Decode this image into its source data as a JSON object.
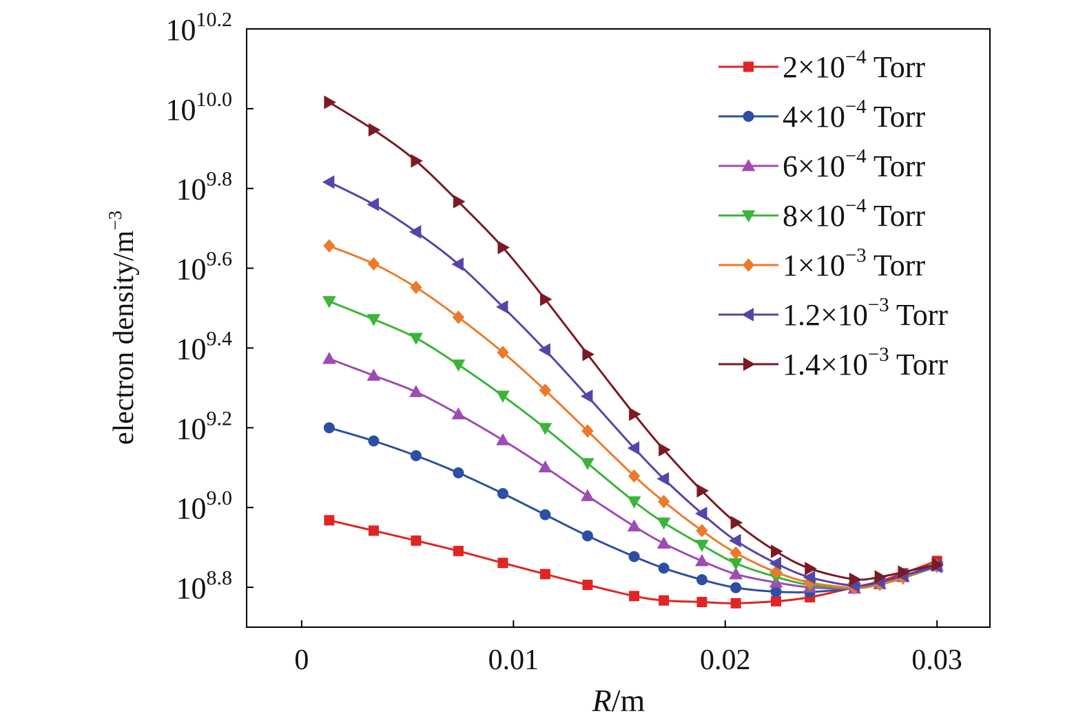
{
  "chart_data": {
    "type": "line",
    "xlabel": {
      "italic": "R",
      "rest": "/m"
    },
    "ylabel": {
      "base": "electron density/m",
      "sup": "−3"
    },
    "xlim": [
      -0.0026,
      0.0325
    ],
    "ylim": [
      8.7,
      10.2
    ],
    "y_scale": "log10",
    "grid": false,
    "legend_position": "top-right",
    "x_ticks": [
      {
        "value": 0,
        "label": "0"
      },
      {
        "value": 0.01,
        "label": "0.01"
      },
      {
        "value": 0.02,
        "label": "0.02"
      },
      {
        "value": 0.03,
        "label": "0.03"
      }
    ],
    "y_ticks": [
      {
        "exp": 8.8,
        "base": "10",
        "sup": "8.8"
      },
      {
        "exp": 9.0,
        "base": "10",
        "sup": "9.0"
      },
      {
        "exp": 9.2,
        "base": "10",
        "sup": "9.2"
      },
      {
        "exp": 9.4,
        "base": "10",
        "sup": "9.4"
      },
      {
        "exp": 9.6,
        "base": "10",
        "sup": "9.6"
      },
      {
        "exp": 9.8,
        "base": "10",
        "sup": "9.8"
      },
      {
        "exp": 10.0,
        "base": "10",
        "sup": "10.0"
      },
      {
        "exp": 10.2,
        "base": "10",
        "sup": "10.2"
      }
    ],
    "x": [
      0.0013,
      0.0034,
      0.0054,
      0.0074,
      0.0095,
      0.0115,
      0.0135,
      0.0157,
      0.0171,
      0.0189,
      0.0205,
      0.0224,
      0.024,
      0.0261,
      0.0273,
      0.0284,
      0.03
    ],
    "series": [
      {
        "name": "2×10⁻⁴ Torr",
        "base": "2×10",
        "sup": "−4",
        "tail": " Torr",
        "color": "#e02424",
        "marker": "square",
        "values": [
          8.968,
          8.942,
          8.917,
          8.891,
          8.861,
          8.833,
          8.806,
          8.778,
          8.767,
          8.763,
          8.76,
          8.765,
          8.775,
          8.8,
          8.815,
          8.835,
          8.866
        ]
      },
      {
        "name": "4×10⁻⁴ Torr",
        "base": "4×10",
        "sup": "−4",
        "tail": " Torr",
        "color": "#2d4fa3",
        "marker": "circle",
        "values": [
          9.2,
          9.167,
          9.13,
          9.087,
          9.035,
          8.982,
          8.929,
          8.877,
          8.848,
          8.819,
          8.799,
          8.789,
          8.788,
          8.798,
          8.811,
          8.828,
          8.857
        ]
      },
      {
        "name": "6×10⁻⁴ Torr",
        "base": "6×10",
        "sup": "−4",
        "tail": " Torr",
        "color": "#a04bb4",
        "marker": "triangle-up",
        "values": [
          9.373,
          9.331,
          9.29,
          9.234,
          9.169,
          9.101,
          9.029,
          8.953,
          8.91,
          8.866,
          8.833,
          8.812,
          8.8,
          8.797,
          8.808,
          8.826,
          8.853
        ]
      },
      {
        "name": "8×10⁻⁴ Torr",
        "base": "8×10",
        "sup": "−4",
        "tail": " Torr",
        "color": "#3ab53a",
        "marker": "triangle-down",
        "values": [
          9.517,
          9.472,
          9.425,
          9.358,
          9.28,
          9.199,
          9.111,
          9.015,
          8.962,
          8.906,
          8.86,
          8.826,
          8.806,
          8.798,
          8.807,
          8.823,
          8.852
        ]
      },
      {
        "name": "1×10⁻³ Torr",
        "base": "1×10",
        "sup": "−3",
        "tail": " Torr",
        "color": "#ed7a2a",
        "marker": "diamond",
        "values": [
          9.656,
          9.611,
          9.552,
          9.477,
          9.389,
          9.294,
          9.192,
          9.079,
          9.015,
          8.942,
          8.886,
          8.838,
          8.812,
          8.799,
          8.808,
          8.824,
          8.854
        ]
      },
      {
        "name": "1.2×10⁻³ Torr",
        "base": "1.2×10",
        "sup": "−3",
        "tail": " Torr",
        "color": "#5446a8",
        "marker": "triangle-left",
        "values": [
          9.816,
          9.76,
          9.691,
          9.61,
          9.503,
          9.395,
          9.279,
          9.149,
          9.072,
          8.985,
          8.917,
          8.86,
          8.825,
          8.804,
          8.813,
          8.829,
          8.852
        ]
      },
      {
        "name": "1.4×10⁻³ Torr",
        "base": "1.4×10",
        "sup": "−3",
        "tail": " Torr",
        "color": "#7c1a24",
        "marker": "triangle-right",
        "values": [
          10.016,
          9.947,
          9.869,
          9.767,
          9.652,
          9.522,
          9.384,
          9.234,
          9.145,
          9.042,
          8.962,
          8.89,
          8.847,
          8.82,
          8.826,
          8.838,
          8.857
        ]
      }
    ]
  }
}
